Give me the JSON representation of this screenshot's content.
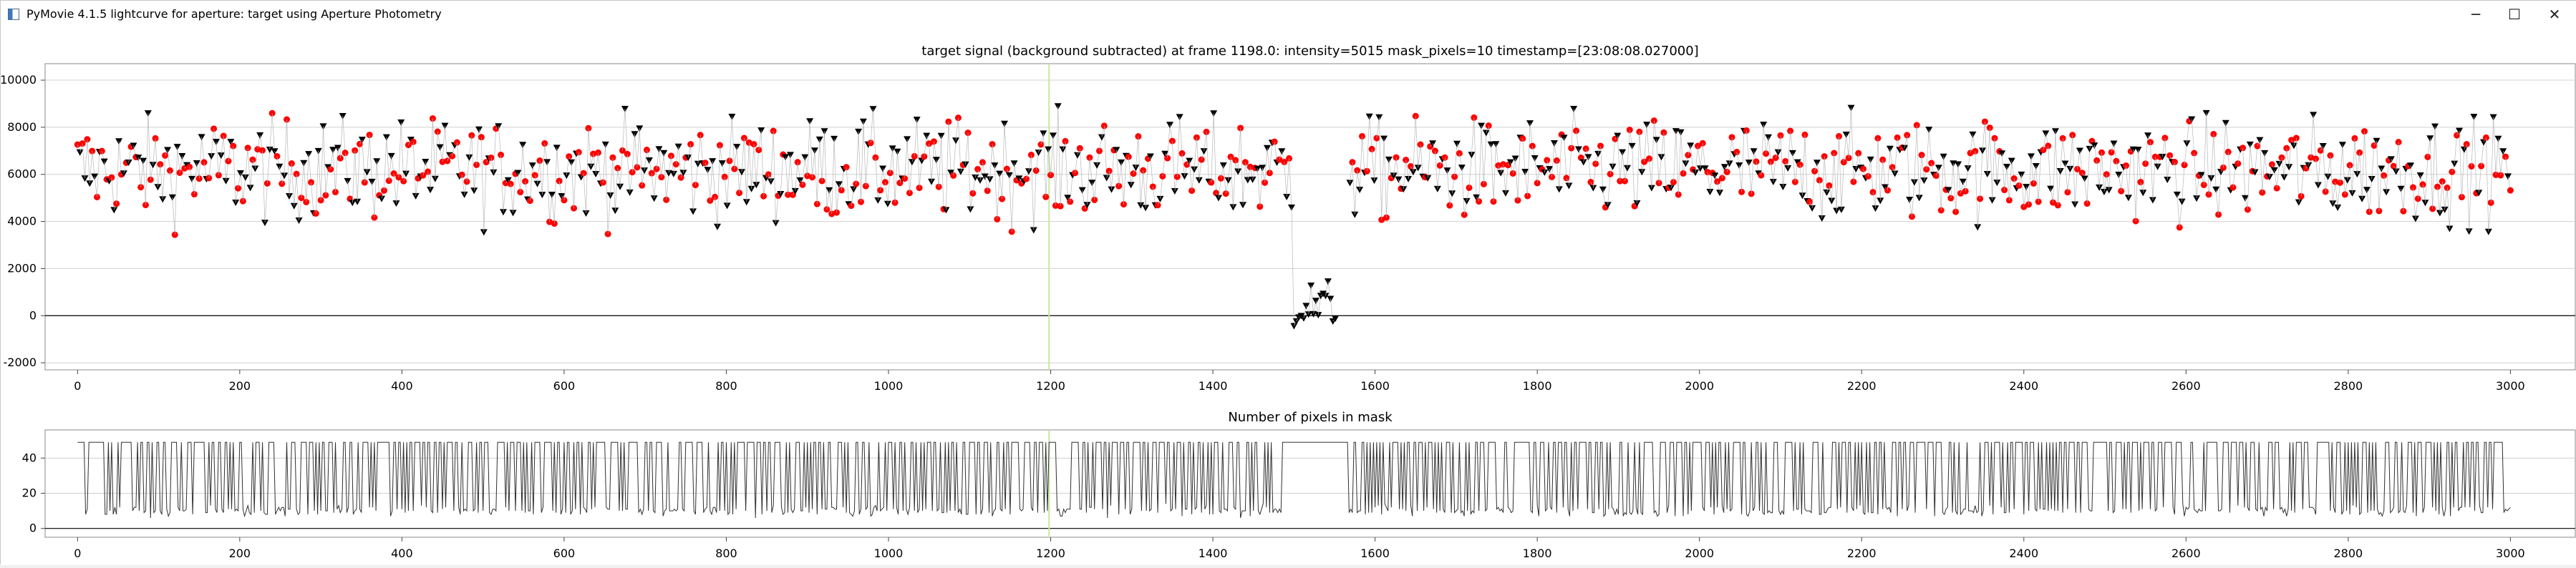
{
  "window": {
    "title": "PyMovie 4.1.5 lightcurve for aperture: target using Aperture Photometry",
    "icon": "app-window-icon",
    "controls": {
      "minimize": "─",
      "maximize": "☐",
      "close": "✕"
    }
  },
  "colors": {
    "point_red": "#ff0000",
    "point_black": "#000000",
    "connector": "#b8b8b8",
    "cursor_line": "#c8e6a0",
    "mask_line": "#303030",
    "grid": "#d0d0d0",
    "zero_line": "#000000"
  },
  "chart_data": [
    {
      "type": "scatter",
      "title": "target signal (background subtracted) at frame 1198.0: intensity=5015 mask_pixels=10 timestamp=[23:08:08.027000]",
      "xlim": [
        -40,
        3080
      ],
      "ylim": [
        -2300,
        10700
      ],
      "x_ticks": [
        0,
        200,
        400,
        600,
        800,
        1000,
        1200,
        1400,
        1600,
        1800,
        2000,
        2200,
        2400,
        2600,
        2800,
        3000
      ],
      "y_ticks": [
        -2000,
        0,
        2000,
        4000,
        6000,
        8000,
        10000
      ],
      "x_tick_labels": [
        "0",
        "200",
        "400",
        "600",
        "800",
        "1000",
        "1200",
        "1400",
        "1600",
        "1800",
        "2000",
        "2200",
        "2400",
        "2600",
        "2800",
        "3000"
      ],
      "y_tick_labels": [
        "-2000",
        "0",
        "2000",
        "4000",
        "6000",
        "8000",
        "10000"
      ],
      "grid": true,
      "cursor_frame": 1198,
      "frames": [
        0,
        3000
      ],
      "data_gap": [
        1553,
        1567
      ],
      "sample_step": 3,
      "series": [
        {
          "marker": "circle",
          "color": "red",
          "description_visible": false
        },
        {
          "marker": "triangle-down",
          "color": "black",
          "description_visible": false
        }
      ],
      "baseline": {
        "mean": 6200,
        "spread": 1400
      },
      "event": {
        "start": 1500,
        "end": 1553,
        "mean": 400,
        "spread": 900
      }
    },
    {
      "type": "line",
      "title": "Number of pixels in mask",
      "xlim": [
        -40,
        3080
      ],
      "ylim": [
        -5,
        56
      ],
      "x_ticks": [
        0,
        200,
        400,
        600,
        800,
        1000,
        1200,
        1400,
        1600,
        1800,
        2000,
        2200,
        2400,
        2600,
        2800,
        3000
      ],
      "y_ticks": [
        0,
        20,
        40
      ],
      "x_tick_labels": [
        "0",
        "200",
        "400",
        "600",
        "800",
        "1000",
        "1200",
        "1400",
        "1600",
        "1800",
        "2000",
        "2200",
        "2400",
        "2600",
        "2800",
        "3000"
      ],
      "y_tick_labels": [
        "0",
        "20",
        "40"
      ],
      "grid": true,
      "cursor_frame": 1198,
      "high_value": 49,
      "low_value": 10,
      "gap_segment": [
        1485,
        1560
      ]
    }
  ]
}
